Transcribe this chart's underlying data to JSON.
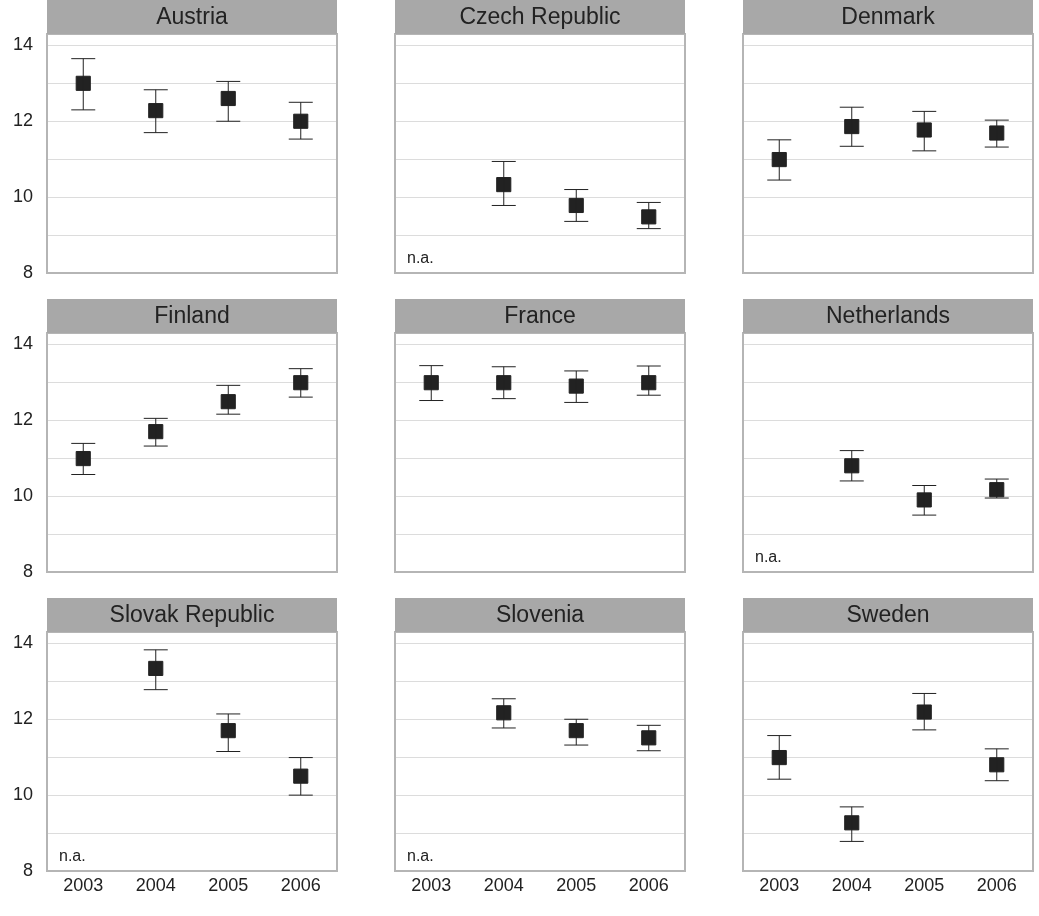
{
  "chart_data": [
    {
      "type": "scatter",
      "title": "Austria",
      "categories": [
        "2003",
        "2004",
        "2005",
        "2006"
      ],
      "values": [
        13.0,
        12.28,
        12.6,
        12.0
      ],
      "errors": [
        [
          12.3,
          13.65
        ],
        [
          11.7,
          12.83
        ],
        [
          12.0,
          13.05
        ],
        [
          11.53,
          12.5
        ]
      ],
      "color": "#222222",
      "marker": "square",
      "ylim": [
        8,
        14.3
      ],
      "yticks": [
        8,
        {
          "value": 9,
          "label": null
        },
        10,
        {
          "value": 11,
          "label": null
        },
        12,
        {
          "value": 13,
          "label": null
        },
        14
      ],
      "grid": "y",
      "tick_labels": "y"
    },
    {
      "type": "scatter",
      "title": "Czech Republic",
      "categories": [
        "2003",
        "2004",
        "2005",
        "2006"
      ],
      "values": [
        null,
        10.33,
        9.78,
        9.48
      ],
      "errors": [
        null,
        [
          9.78,
          10.94
        ],
        [
          9.36,
          10.2
        ],
        [
          9.17,
          9.86
        ]
      ],
      "color": "#222222",
      "marker": "square",
      "ylim": [
        8,
        14.3
      ],
      "yticks": [
        8,
        {
          "value": 9,
          "label": null
        },
        10,
        {
          "value": 11,
          "label": null
        },
        12,
        {
          "value": 13,
          "label": null
        },
        14
      ],
      "grid": "y",
      "tick_labels": false,
      "annotations": [
        "n.a."
      ]
    },
    {
      "type": "scatter",
      "title": "Denmark",
      "categories": [
        "2003",
        "2004",
        "2005",
        "2006"
      ],
      "values": [
        10.99,
        11.86,
        11.77,
        11.69
      ],
      "errors": [
        [
          10.45,
          11.51
        ],
        [
          11.34,
          12.37
        ],
        [
          11.22,
          12.26
        ],
        [
          11.32,
          12.03
        ]
      ],
      "color": "#222222",
      "marker": "square",
      "ylim": [
        8,
        14.3
      ],
      "yticks": [
        8,
        {
          "value": 9,
          "label": null
        },
        10,
        {
          "value": 11,
          "label": null
        },
        12,
        {
          "value": 13,
          "label": null
        },
        14
      ],
      "grid": "y",
      "tick_labels": false
    },
    {
      "type": "scatter",
      "title": "Finland",
      "categories": [
        "2003",
        "2004",
        "2005",
        "2006"
      ],
      "values": [
        10.99,
        11.7,
        12.49,
        12.99
      ],
      "errors": [
        [
          10.57,
          11.39
        ],
        [
          11.32,
          12.05
        ],
        [
          12.16,
          12.92
        ],
        [
          12.61,
          13.36
        ]
      ],
      "color": "#222222",
      "marker": "square",
      "ylim": [
        8,
        14.3
      ],
      "yticks": [
        8,
        {
          "value": 9,
          "label": null
        },
        10,
        {
          "value": 11,
          "label": null
        },
        12,
        {
          "value": 13,
          "label": null
        },
        14
      ],
      "grid": "y",
      "tick_labels": "y"
    },
    {
      "type": "scatter",
      "title": "France",
      "categories": [
        "2003",
        "2004",
        "2005",
        "2006"
      ],
      "values": [
        12.99,
        12.99,
        12.9,
        12.99
      ],
      "errors": [
        [
          12.52,
          13.44
        ],
        [
          12.57,
          13.41
        ],
        [
          12.47,
          13.3
        ],
        [
          12.66,
          13.43
        ]
      ],
      "color": "#222222",
      "marker": "square",
      "ylim": [
        8,
        14.3
      ],
      "yticks": [
        8,
        {
          "value": 9,
          "label": null
        },
        10,
        {
          "value": 11,
          "label": null
        },
        12,
        {
          "value": 13,
          "label": null
        },
        14
      ],
      "grid": "y",
      "tick_labels": false
    },
    {
      "type": "scatter",
      "title": "Netherlands",
      "categories": [
        "2003",
        "2004",
        "2005",
        "2006"
      ],
      "values": [
        null,
        10.8,
        9.9,
        10.17
      ],
      "errors": [
        null,
        [
          10.4,
          11.2
        ],
        [
          9.5,
          10.28
        ],
        [
          9.95,
          10.45
        ]
      ],
      "color": "#222222",
      "marker": "square",
      "ylim": [
        8,
        14.3
      ],
      "yticks": [
        8,
        {
          "value": 9,
          "label": null
        },
        10,
        {
          "value": 11,
          "label": null
        },
        12,
        {
          "value": 13,
          "label": null
        },
        14
      ],
      "grid": "y",
      "tick_labels": false,
      "annotations": [
        "n.a."
      ]
    },
    {
      "type": "scatter",
      "title": "Slovak Republic",
      "categories": [
        "2003",
        "2004",
        "2005",
        "2006"
      ],
      "values": [
        null,
        13.34,
        11.7,
        10.5
      ],
      "errors": [
        null,
        [
          12.78,
          13.83
        ],
        [
          11.15,
          12.14
        ],
        [
          10.0,
          10.99
        ]
      ],
      "color": "#222222",
      "marker": "square",
      "ylim": [
        8,
        14.3
      ],
      "yticks": [
        8,
        {
          "value": 9,
          "label": null
        },
        10,
        {
          "value": 11,
          "label": null
        },
        12,
        {
          "value": 13,
          "label": null
        },
        14
      ],
      "grid": "y",
      "annotations": [
        "n.a."
      ]
    },
    {
      "type": "scatter",
      "title": "Slovenia",
      "categories": [
        "2003",
        "2004",
        "2005",
        "2006"
      ],
      "values": [
        null,
        12.17,
        11.7,
        11.51
      ],
      "errors": [
        null,
        [
          11.77,
          12.54
        ],
        [
          11.32,
          12.0
        ],
        [
          11.17,
          11.84
        ]
      ],
      "color": "#222222",
      "marker": "square",
      "ylim": [
        8,
        14.3
      ],
      "yticks": [
        8,
        {
          "value": 9,
          "label": null
        },
        10,
        {
          "value": 11,
          "label": null
        },
        12,
        {
          "value": 13,
          "label": null
        },
        14
      ],
      "grid": "y",
      "tick_labels": "x",
      "annotations": [
        "n.a."
      ]
    },
    {
      "type": "scatter",
      "title": "Sweden",
      "categories": [
        "2003",
        "2004",
        "2005",
        "2006"
      ],
      "values": [
        10.99,
        9.27,
        12.19,
        10.8
      ],
      "errors": [
        [
          10.42,
          11.57
        ],
        [
          8.78,
          9.69
        ],
        [
          11.72,
          12.68
        ],
        [
          10.38,
          11.22
        ]
      ],
      "color": "#222222",
      "marker": "square",
      "ylim": [
        8,
        14.3
      ],
      "yticks": [
        8,
        {
          "value": 9,
          "label": null
        },
        10,
        {
          "value": 11,
          "label": null
        },
        12,
        {
          "value": 13,
          "label": null
        },
        14
      ],
      "grid": "y",
      "tick_labels": "x"
    }
  ]
}
